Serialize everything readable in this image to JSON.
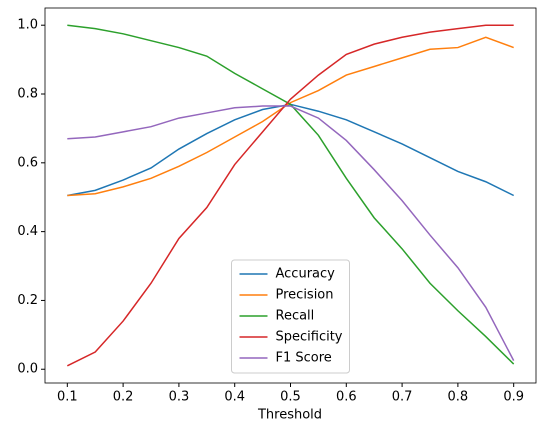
{
  "chart_data": {
    "type": "line",
    "x_label": "Threshold",
    "x": [
      0.1,
      0.15,
      0.2,
      0.25,
      0.3,
      0.35,
      0.4,
      0.45,
      0.5,
      0.55,
      0.6,
      0.65,
      0.7,
      0.75,
      0.8,
      0.85,
      0.9
    ],
    "series": [
      {
        "name": "Accuracy",
        "color": "#1f77b4",
        "values": [
          0.505,
          0.52,
          0.55,
          0.585,
          0.64,
          0.685,
          0.725,
          0.755,
          0.77,
          0.75,
          0.725,
          0.69,
          0.655,
          0.615,
          0.575,
          0.545,
          0.505
        ]
      },
      {
        "name": "Precision",
        "color": "#ff7f0e",
        "values": [
          0.505,
          0.51,
          0.53,
          0.555,
          0.59,
          0.63,
          0.675,
          0.72,
          0.775,
          0.81,
          0.855,
          0.88,
          0.905,
          0.93,
          0.935,
          0.965,
          0.935
        ]
      },
      {
        "name": "Recall",
        "color": "#2ca02c",
        "values": [
          1.0,
          0.99,
          0.975,
          0.955,
          0.935,
          0.91,
          0.86,
          0.815,
          0.77,
          0.68,
          0.555,
          0.44,
          0.35,
          0.25,
          0.17,
          0.095,
          0.015
        ]
      },
      {
        "name": "Specificity",
        "color": "#d62728",
        "values": [
          0.01,
          0.05,
          0.14,
          0.25,
          0.38,
          0.47,
          0.595,
          0.69,
          0.785,
          0.855,
          0.915,
          0.945,
          0.965,
          0.98,
          0.99,
          1.0,
          1.0
        ]
      },
      {
        "name": "F1 Score",
        "color": "#9467bd",
        "values": [
          0.67,
          0.675,
          0.69,
          0.705,
          0.73,
          0.745,
          0.76,
          0.765,
          0.765,
          0.73,
          0.665,
          0.58,
          0.49,
          0.39,
          0.295,
          0.18,
          0.025
        ]
      }
    ],
    "xlim": [
      0.06,
      0.94
    ],
    "xticks": [
      0.1,
      0.2,
      0.3,
      0.4,
      0.5,
      0.6,
      0.7,
      0.8,
      0.9
    ],
    "ylim": [
      -0.04,
      1.05
    ],
    "yticks": [
      {
        "value": 0,
        "label": "0.0"
      },
      0.2,
      0.4,
      0.6,
      0.8,
      {
        "value": 1,
        "label": "1.0"
      }
    ],
    "legend": "lower center"
  }
}
